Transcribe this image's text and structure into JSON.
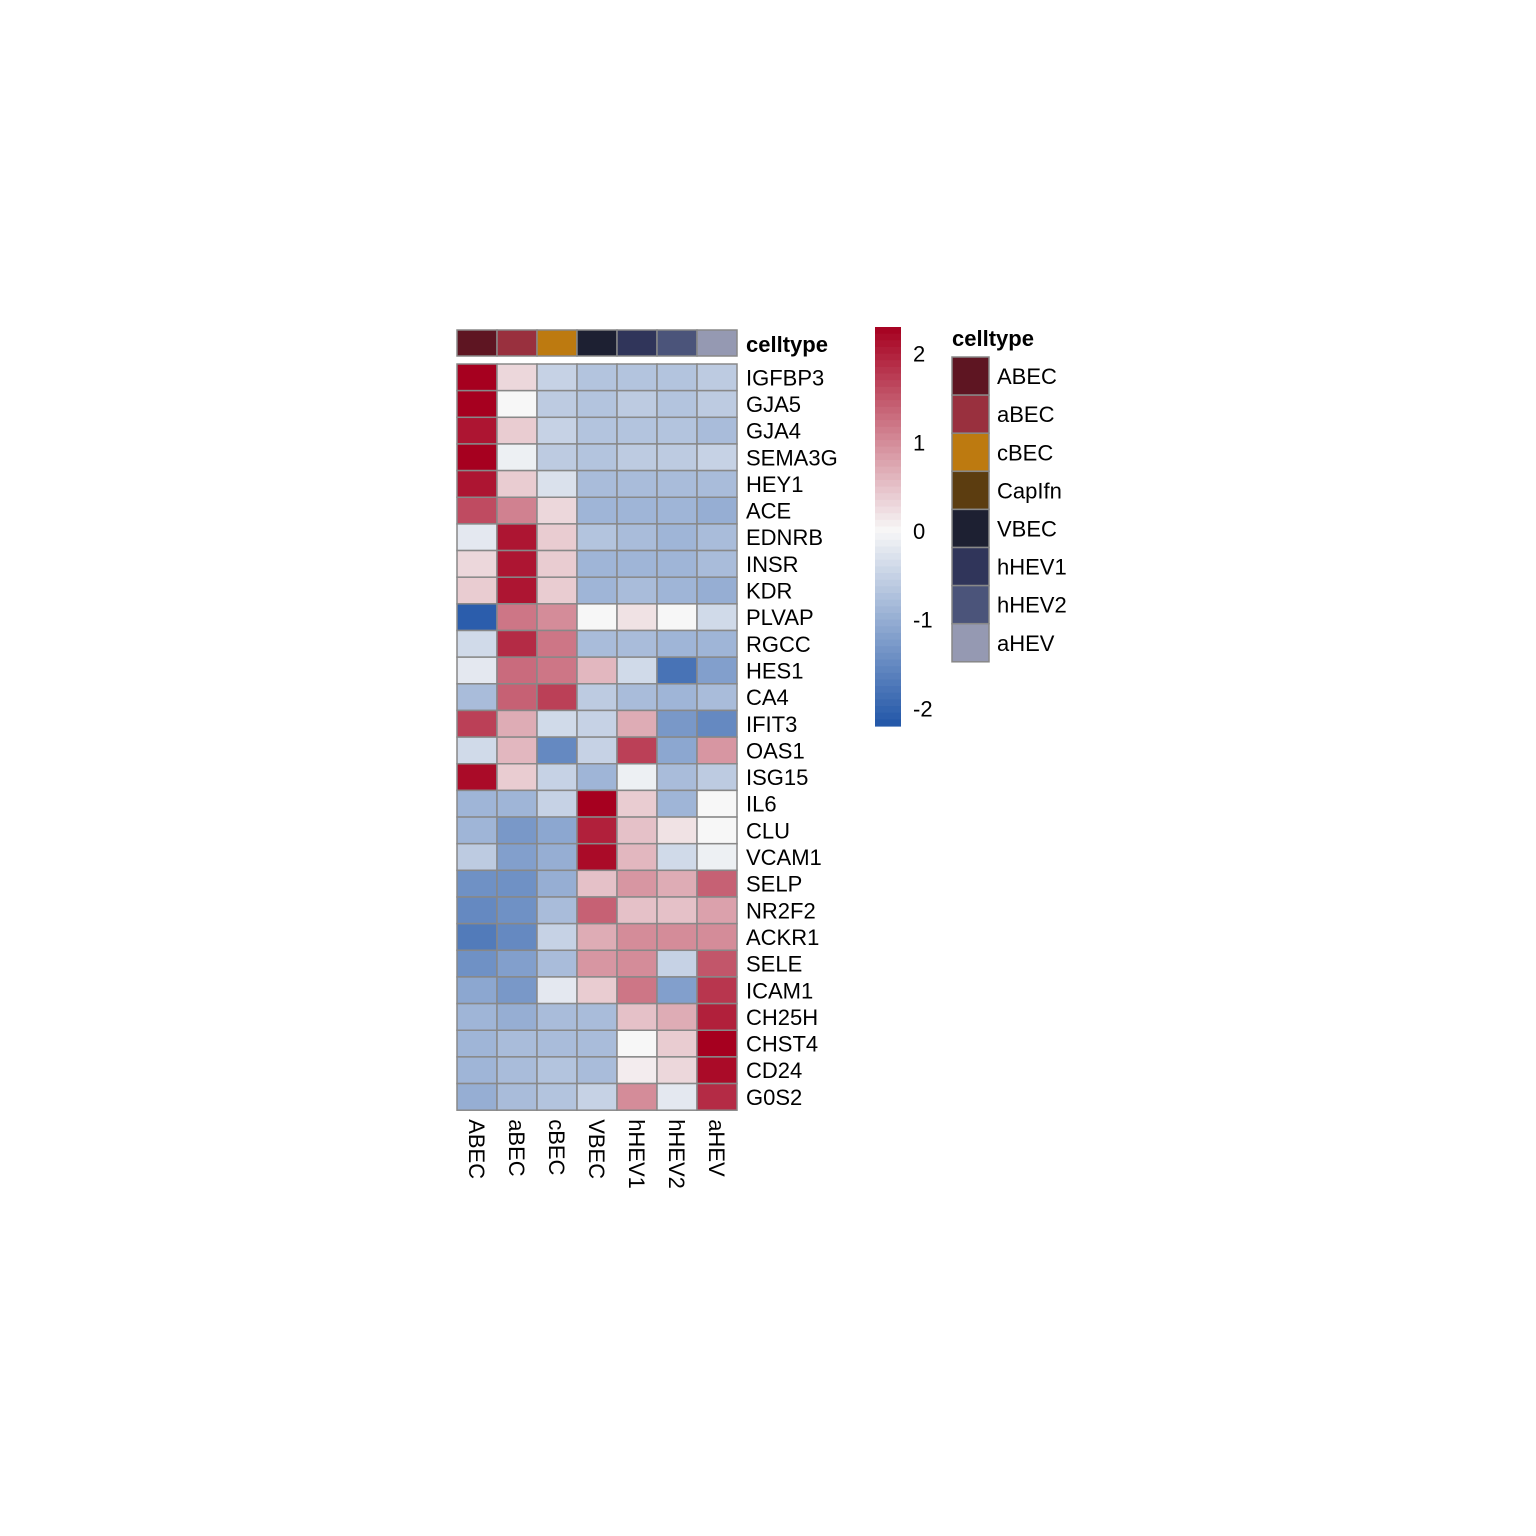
{
  "chart_data": {
    "type": "heatmap",
    "columns": [
      "ABEC",
      "aBEC",
      "cBEC",
      "VBEC",
      "hHEV1",
      "hHEV2",
      "aHEV"
    ],
    "rows": [
      "IGFBP3",
      "GJA5",
      "GJA4",
      "SEMA3G",
      "HEY1",
      "ACE",
      "EDNRB",
      "INSR",
      "KDR",
      "PLVAP",
      "RGCC",
      "HES1",
      "CA4",
      "IFIT3",
      "OAS1",
      "ISG15",
      "IL6",
      "CLU",
      "VCAM1",
      "SELP",
      "NR2F2",
      "ACKR1",
      "SELE",
      "ICAM1",
      "CH25H",
      "CHST4",
      "CD24",
      "G0S2"
    ],
    "values": [
      [
        2.3,
        0.3,
        -0.5,
        -0.7,
        -0.7,
        -0.7,
        -0.6
      ],
      [
        2.3,
        0.0,
        -0.6,
        -0.7,
        -0.6,
        -0.7,
        -0.6
      ],
      [
        2.1,
        0.4,
        -0.5,
        -0.7,
        -0.7,
        -0.7,
        -0.8
      ],
      [
        2.3,
        -0.1,
        -0.6,
        -0.7,
        -0.6,
        -0.6,
        -0.5
      ],
      [
        2.1,
        0.4,
        -0.3,
        -0.8,
        -0.8,
        -0.8,
        -0.8
      ],
      [
        1.6,
        1.1,
        0.3,
        -0.9,
        -0.9,
        -0.9,
        -1.0
      ],
      [
        -0.2,
        2.1,
        0.4,
        -0.7,
        -0.8,
        -0.9,
        -0.8
      ],
      [
        0.3,
        2.1,
        0.4,
        -0.9,
        -0.9,
        -0.9,
        -0.8
      ],
      [
        0.4,
        2.1,
        0.4,
        -0.9,
        -0.8,
        -0.9,
        -1.0
      ],
      [
        -2.1,
        1.2,
        1.0,
        0.0,
        0.2,
        0.0,
        -0.4
      ],
      [
        -0.4,
        1.9,
        1.2,
        -0.8,
        -0.8,
        -0.9,
        -0.9
      ],
      [
        -0.2,
        1.3,
        1.2,
        0.6,
        -0.4,
        -1.8,
        -1.2
      ],
      [
        -0.8,
        1.4,
        1.7,
        -0.6,
        -0.8,
        -0.9,
        -0.8
      ],
      [
        1.7,
        0.7,
        -0.4,
        -0.5,
        0.7,
        -1.3,
        -1.5
      ],
      [
        -0.4,
        0.6,
        -1.5,
        -0.5,
        1.7,
        -1.1,
        0.9
      ],
      [
        2.2,
        0.4,
        -0.5,
        -0.9,
        -0.1,
        -0.8,
        -0.6
      ],
      [
        -0.9,
        -0.9,
        -0.5,
        2.3,
        0.4,
        -0.9,
        0.0
      ],
      [
        -0.9,
        -1.3,
        -1.1,
        2.0,
        0.5,
        0.2,
        0.0
      ],
      [
        -0.6,
        -1.2,
        -1.0,
        2.2,
        0.6,
        -0.4,
        -0.1
      ],
      [
        -1.4,
        -1.4,
        -1.0,
        0.5,
        0.9,
        0.7,
        1.4
      ],
      [
        -1.5,
        -1.4,
        -0.8,
        1.4,
        0.5,
        0.5,
        0.8
      ],
      [
        -1.7,
        -1.5,
        -0.5,
        0.7,
        1.0,
        1.0,
        1.0
      ],
      [
        -1.4,
        -1.2,
        -0.8,
        0.9,
        1.0,
        -0.5,
        1.5
      ],
      [
        -1.1,
        -1.3,
        -0.2,
        0.4,
        1.2,
        -1.2,
        1.8
      ],
      [
        -0.9,
        -1.0,
        -0.8,
        -0.8,
        0.5,
        0.7,
        2.0
      ],
      [
        -0.9,
        -0.8,
        -0.8,
        -0.8,
        0.0,
        0.4,
        2.3
      ],
      [
        -0.9,
        -0.8,
        -0.7,
        -0.8,
        0.1,
        0.3,
        2.2
      ],
      [
        -1.0,
        -0.8,
        -0.7,
        -0.5,
        1.0,
        -0.2,
        1.9
      ]
    ],
    "color_scale": {
      "min": -2.2,
      "max": 2.3,
      "low_color": "#2156a8",
      "mid_color": "#f7f7f7",
      "high_color": "#a6001f",
      "ticks": [
        "2",
        "1",
        "0",
        "-1",
        "-2"
      ],
      "tick_values": [
        2,
        1,
        0,
        -1,
        -2
      ]
    },
    "annotation": {
      "label": "celltype",
      "column_colors": [
        "#5e1522",
        "#99303e",
        "#bd7a10",
        "#1d2032",
        "#30355a",
        "#4b547a",
        "#9599b2"
      ]
    },
    "annotation_legend": {
      "title": "celltype",
      "items": [
        {
          "label": "ABEC",
          "color": "#5e1522"
        },
        {
          "label": "aBEC",
          "color": "#99303e"
        },
        {
          "label": "cBEC",
          "color": "#bd7a10"
        },
        {
          "label": "CapIfn",
          "color": "#5c3d10"
        },
        {
          "label": "VBEC",
          "color": "#1d2032"
        },
        {
          "label": "hHEV1",
          "color": "#30355a"
        },
        {
          "label": "hHEV2",
          "color": "#4b547a"
        },
        {
          "label": "aHEV",
          "color": "#9599b2"
        }
      ]
    },
    "cell_border_color": "#888888"
  }
}
